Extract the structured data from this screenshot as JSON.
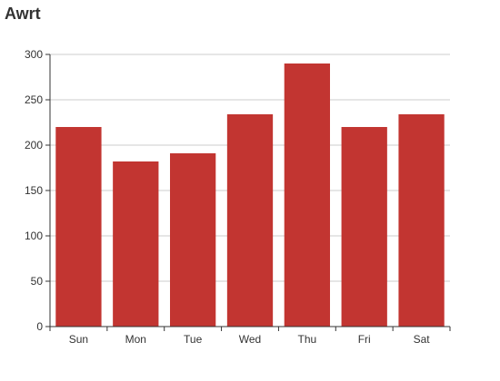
{
  "chart_data": {
    "type": "bar",
    "title": "Awrt",
    "xlabel": "",
    "ylabel": "",
    "categories": [
      "Sun",
      "Mon",
      "Tue",
      "Wed",
      "Thu",
      "Fri",
      "Sat"
    ],
    "values": [
      220,
      182,
      191,
      234,
      290,
      220,
      234
    ],
    "ylim": [
      0,
      300
    ],
    "yticks": [
      0,
      50,
      100,
      150,
      200,
      250,
      300
    ],
    "grid": true,
    "bar_color": "#c23531",
    "grid_color": "#cccccc",
    "axis_color": "#333333"
  }
}
